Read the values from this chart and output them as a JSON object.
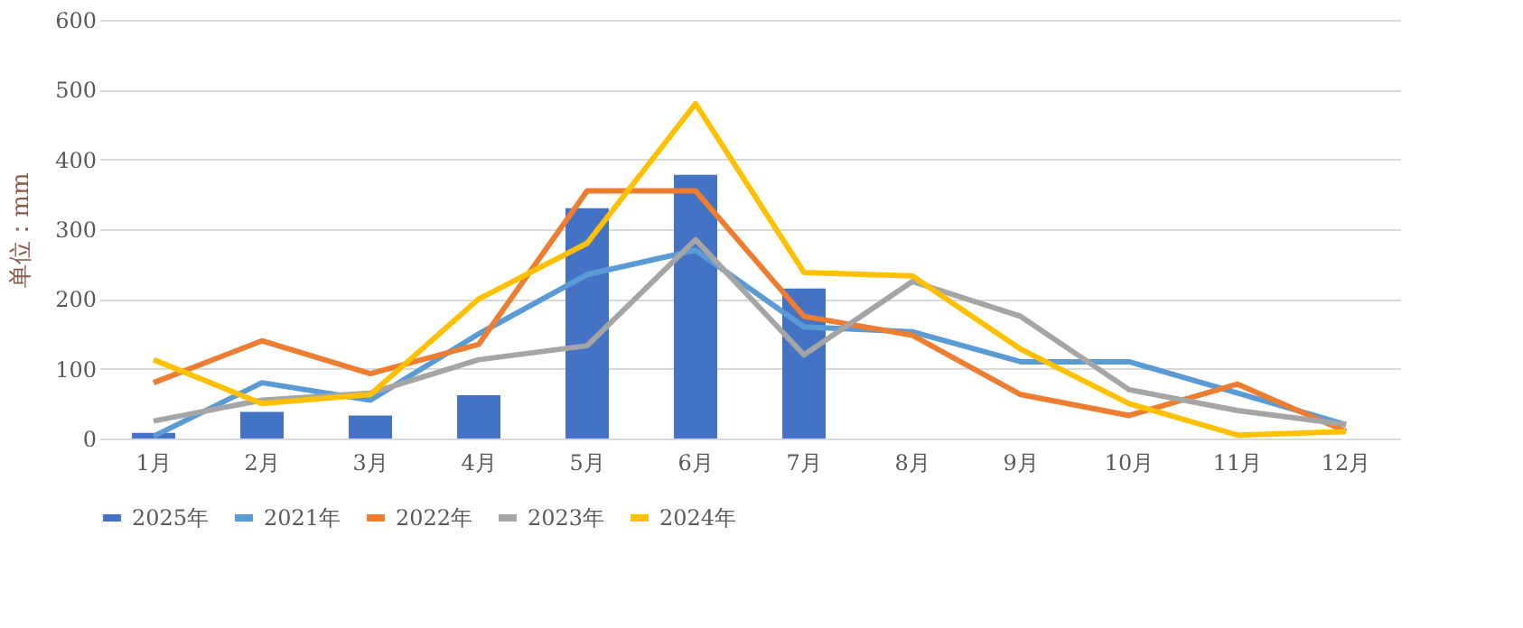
{
  "chart_data": {
    "type": "bar",
    "ylabel": "单位：mm",
    "categories": [
      "1月",
      "2月",
      "3月",
      "4月",
      "5月",
      "6月",
      "7月",
      "8月",
      "9月",
      "10月",
      "11月",
      "12月"
    ],
    "series": [
      {
        "name": "2025年",
        "color": "#4472c4",
        "values": [
          8,
          38,
          33,
          62,
          330,
          378,
          215,
          null,
          null,
          null,
          null,
          null
        ]
      },
      {
        "name": "2021年",
        "type": "line",
        "color": "#5b9bd5",
        "values": [
          3,
          80,
          55,
          150,
          235,
          270,
          160,
          153,
          110,
          110,
          65,
          20
        ]
      },
      {
        "name": "2022年",
        "type": "line",
        "color": "#ed7d31",
        "values": [
          80,
          140,
          93,
          135,
          355,
          355,
          175,
          148,
          63,
          33,
          78,
          10
        ]
      },
      {
        "name": "2023年",
        "type": "line",
        "color": "#a5a5a5",
        "values": [
          25,
          55,
          65,
          113,
          133,
          285,
          120,
          225,
          175,
          70,
          40,
          20
        ]
      },
      {
        "name": "2024年",
        "type": "line",
        "color": "#ffc000",
        "values": [
          113,
          50,
          63,
          200,
          280,
          480,
          238,
          233,
          128,
          50,
          5,
          10
        ]
      }
    ],
    "ylim": [
      0,
      600
    ],
    "yticks": [
      0,
      100,
      200,
      300,
      400,
      500,
      600
    ],
    "grid": "y",
    "legend": "bottom",
    "marker": "none",
    "line_style": "solid"
  }
}
